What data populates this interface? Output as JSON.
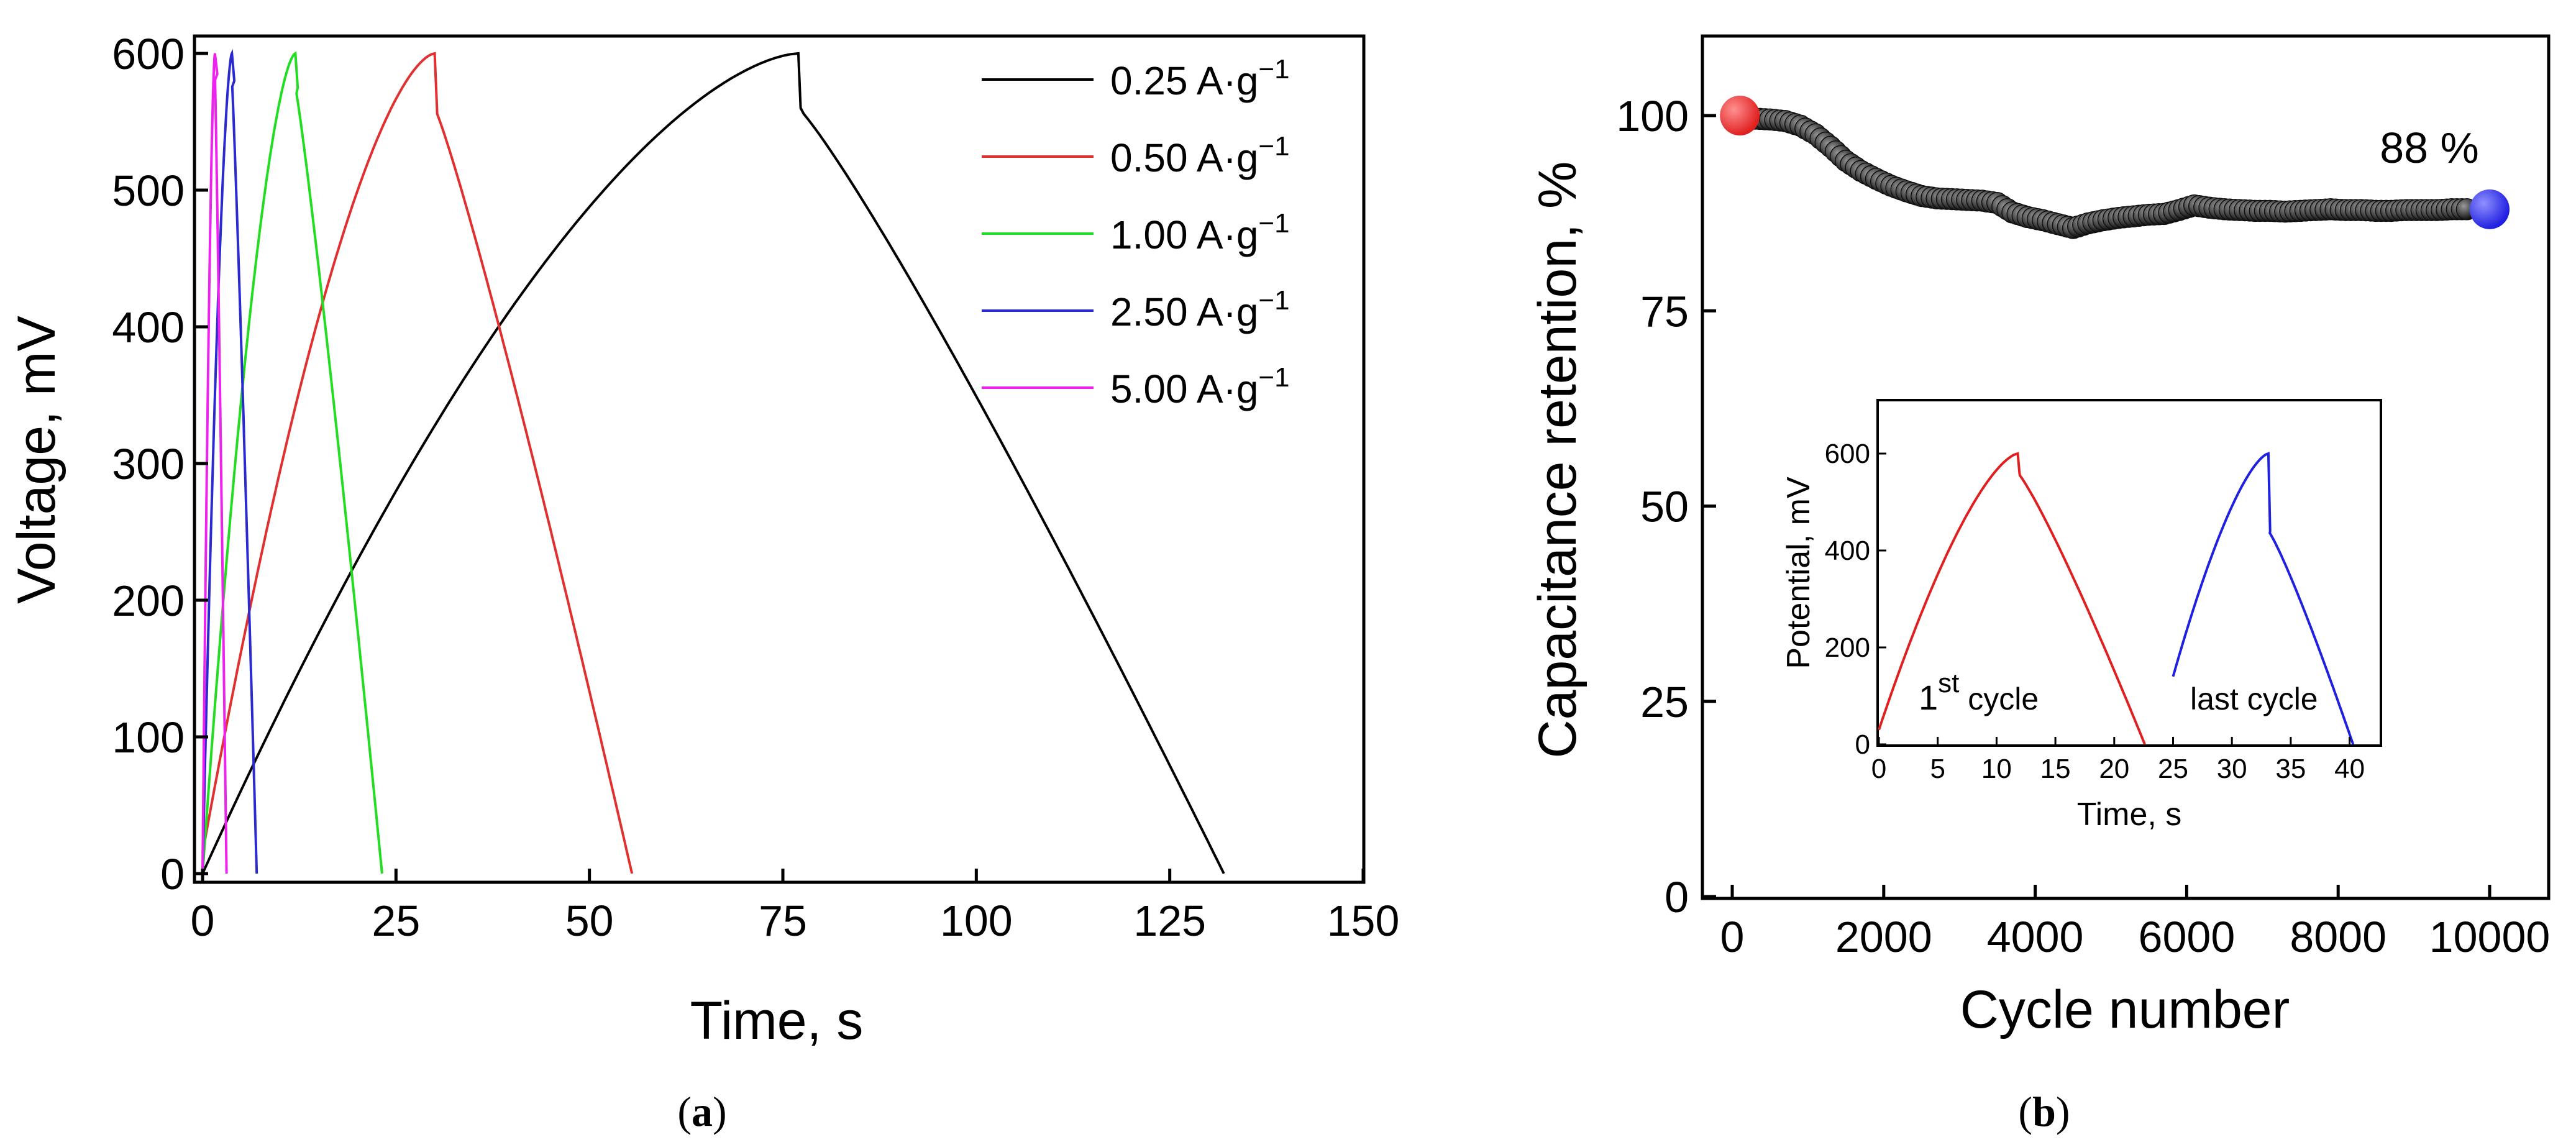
{
  "figure": {
    "caption_a": "a",
    "caption_b": "b",
    "paren_open": "(",
    "paren_close": ")"
  },
  "chart_data": [
    {
      "type": "line",
      "panel": "a",
      "xlabel": "Time, s",
      "ylabel": "Voltage, mV",
      "xlim": [
        0,
        150
      ],
      "ylim": [
        0,
        600
      ],
      "xticks": [
        0,
        25,
        50,
        75,
        100,
        125,
        150
      ],
      "yticks": [
        0,
        100,
        200,
        300,
        400,
        500,
        600
      ],
      "legend": "top-right",
      "grid": false,
      "legend_unit": "A·g",
      "legend_exp": "−1",
      "series": [
        {
          "name": "0.25",
          "color": "#000000",
          "charge_end": 77,
          "discharge_end": 132,
          "min_v": 0,
          "drop": 40
        },
        {
          "name": "0.50",
          "color": "#e03030",
          "charge_end": 30,
          "discharge_end": 55.5,
          "min_v": 15,
          "drop": 40
        },
        {
          "name": "1.00",
          "color": "#22dd22",
          "charge_end": 12,
          "discharge_end": 23.2,
          "min_v": 0,
          "drop": 25
        },
        {
          "name": "2.50",
          "color": "#2a2ad0",
          "charge_end": 3.8,
          "discharge_end": 7,
          "min_v": 0,
          "drop": 20
        },
        {
          "name": "5.00",
          "color": "#ee22ee",
          "charge_end": 1.6,
          "discharge_end": 3.1,
          "min_v": 0,
          "drop": 15
        }
      ]
    },
    {
      "type": "scatter",
      "panel": "b",
      "xlabel": "Cycle number",
      "ylabel": "Capacitance retention, %",
      "xlim": [
        0,
        10000
      ],
      "ylim": [
        0,
        110
      ],
      "xticks": [
        0,
        2000,
        4000,
        6000,
        8000,
        10000
      ],
      "yticks": [
        0,
        25,
        50,
        75,
        100
      ],
      "grid": false,
      "annotation": "88 %",
      "points": [
        [
          100,
          100
        ],
        [
          300,
          99.6
        ],
        [
          600,
          99.4
        ],
        [
          900,
          98.7
        ],
        [
          1200,
          96.6
        ],
        [
          1500,
          94.2
        ],
        [
          1800,
          92.3
        ],
        [
          2100,
          91
        ],
        [
          2400,
          90
        ],
        [
          2700,
          89.4
        ],
        [
          3000,
          89.2
        ],
        [
          3300,
          89.1
        ],
        [
          3600,
          88.5
        ],
        [
          3800,
          87.2
        ],
        [
          4000,
          86.8
        ],
        [
          4200,
          86.3
        ],
        [
          4400,
          85.8
        ],
        [
          4500,
          85.6
        ],
        [
          4700,
          86.2
        ],
        [
          4900,
          86.6
        ],
        [
          5100,
          86.9
        ],
        [
          5300,
          87.1
        ],
        [
          5500,
          87.3
        ],
        [
          5700,
          87.4
        ],
        [
          5900,
          87.6
        ],
        [
          6000,
          88.6
        ],
        [
          6200,
          88.3
        ],
        [
          6500,
          88
        ],
        [
          6800,
          87.8
        ],
        [
          7100,
          87.8
        ],
        [
          7400,
          87.7
        ],
        [
          7700,
          87.9
        ],
        [
          8000,
          88
        ],
        [
          8300,
          87.9
        ],
        [
          8600,
          87.8
        ],
        [
          8900,
          87.9
        ],
        [
          9200,
          87.9
        ],
        [
          9500,
          88
        ],
        [
          9800,
          88
        ],
        [
          10000,
          88
        ]
      ],
      "dense_points": [
        [
          300,
          99.6
        ],
        [
          500,
          99.5
        ],
        [
          700,
          99.3
        ],
        [
          900,
          98.7
        ],
        [
          1100,
          97.6
        ],
        [
          1300,
          96
        ],
        [
          1500,
          94.2
        ],
        [
          1700,
          92.9
        ],
        [
          1900,
          91.9
        ],
        [
          2100,
          91
        ],
        [
          2300,
          90.3
        ],
        [
          2500,
          89.7
        ],
        [
          2700,
          89.4
        ],
        [
          2900,
          89.3
        ],
        [
          3100,
          89.2
        ],
        [
          3300,
          89.1
        ],
        [
          3500,
          88.8
        ],
        [
          3700,
          87.6
        ],
        [
          3900,
          87
        ],
        [
          4100,
          86.6
        ],
        [
          4300,
          86.1
        ],
        [
          4500,
          85.6
        ],
        [
          4700,
          86.2
        ],
        [
          4900,
          86.6
        ],
        [
          5100,
          86.9
        ],
        [
          5300,
          87.1
        ],
        [
          5500,
          87.3
        ],
        [
          5700,
          87.4
        ],
        [
          5900,
          87.9
        ],
        [
          6100,
          88.5
        ],
        [
          6300,
          88.2
        ],
        [
          6500,
          88
        ],
        [
          6700,
          87.9
        ],
        [
          6900,
          87.8
        ],
        [
          7100,
          87.8
        ],
        [
          7300,
          87.7
        ],
        [
          7500,
          87.8
        ],
        [
          7700,
          87.9
        ],
        [
          7900,
          88
        ],
        [
          8100,
          87.9
        ],
        [
          8300,
          87.9
        ],
        [
          8500,
          87.8
        ],
        [
          8700,
          87.8
        ],
        [
          8900,
          87.9
        ],
        [
          9100,
          87.9
        ],
        [
          9300,
          87.9
        ],
        [
          9500,
          88
        ],
        [
          9700,
          88
        ]
      ],
      "first_point": {
        "x": 100,
        "y": 100,
        "color": "#e02020"
      },
      "last_point": {
        "x": 10000,
        "y": 88,
        "color": "#2020e0"
      },
      "inset": {
        "type": "line",
        "xlabel": "Time, s",
        "ylabel": "Potential, mV",
        "xlim": [
          0,
          42
        ],
        "ylim": [
          0,
          700
        ],
        "xticks": [
          0,
          5,
          10,
          15,
          20,
          25,
          30,
          35,
          40
        ],
        "yticks": [
          0,
          200,
          400,
          600
        ],
        "label_first_base": "1",
        "label_first_sup": "st",
        "label_first_tail": " cycle",
        "label_last": "last cycle",
        "first_cycle": {
          "color": "#e02020",
          "start": 0,
          "peak_t": 11.8,
          "end": 22.6,
          "peak_v": 600,
          "drop": 40
        },
        "last_cycle": {
          "color": "#2020e0",
          "start": 25,
          "start_v": 140,
          "peak_t": 33.1,
          "end": 40.3,
          "peak_v": 600,
          "drop": 160
        }
      }
    }
  ]
}
